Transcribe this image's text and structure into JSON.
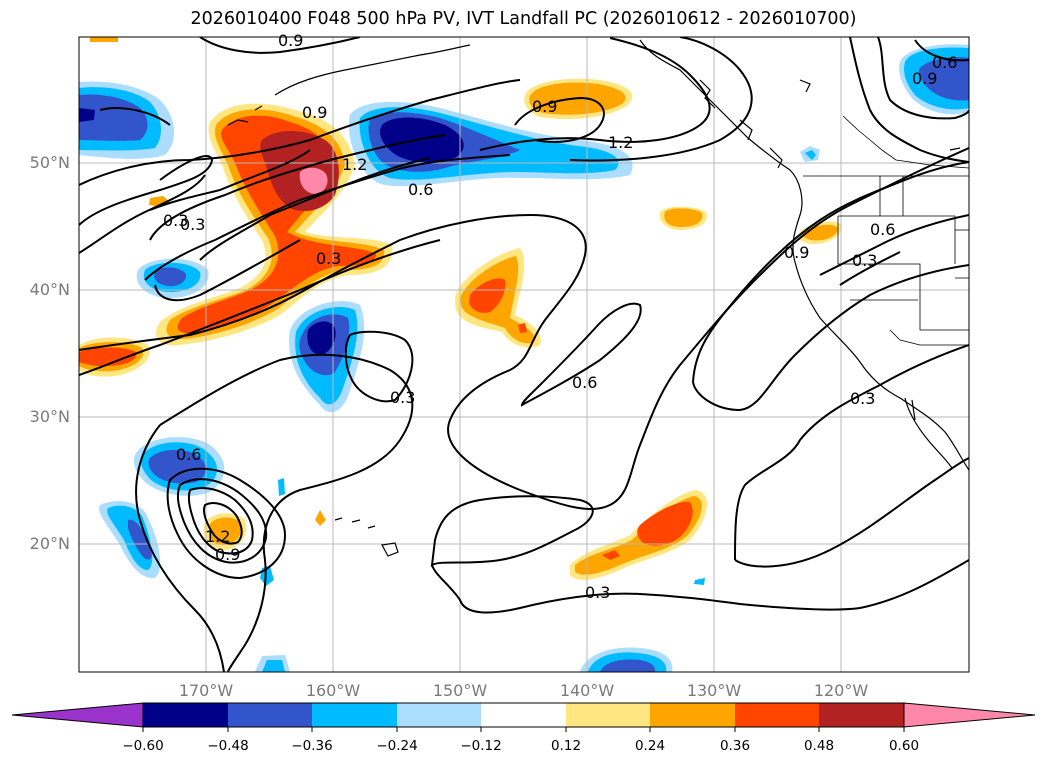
{
  "title": "2026010400 F048 500 hPa PV, IVT Landfall PC (2026010612 - 2026010700)",
  "lat_labels": [
    "50°N",
    "40°N",
    "30°N",
    "20°N"
  ],
  "lon_labels": [
    "170°W",
    "160°W",
    "150°W",
    "140°W",
    "130°W",
    "120°W"
  ],
  "contour_labels": [
    "0.9",
    "0.9",
    "0.9",
    "1.2",
    "1.2",
    "0.6",
    "0.3",
    "0.3",
    "0.3",
    "0.3",
    "0.6",
    "0.6",
    "0.9",
    "0.6",
    "0.3",
    "0.3",
    "0.6",
    "1.2",
    "0.9",
    "0.3",
    "0.9"
  ],
  "colorbar": {
    "ticks": [
      "−0.60",
      "−0.48",
      "−0.36",
      "−0.24",
      "−0.12",
      "0.12",
      "0.24",
      "0.36",
      "0.48",
      "0.60"
    ],
    "colors": [
      "#9933cc",
      "#000088",
      "#3355cc",
      "#00bbff",
      "#aaddff",
      "#ffffff",
      "#ffe680",
      "#ffa500",
      "#ff4500",
      "#b22222",
      "#ff88aa"
    ]
  },
  "fill_colors": {
    "neg_light": "#aaddff",
    "neg_cyan": "#00bbff",
    "neg_blue": "#3355cc",
    "neg_navy": "#000088",
    "pos_yellow": "#ffe680",
    "pos_orange": "#ffa500",
    "pos_red": "#ff4500",
    "pos_dark": "#b22222",
    "pos_pink": "#ff88aa"
  }
}
